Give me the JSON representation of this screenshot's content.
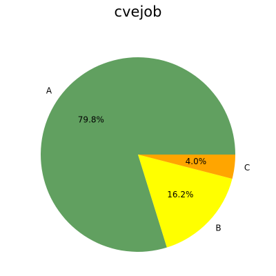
{
  "chart_data": {
    "type": "pie",
    "title": "cvejob",
    "labels": [
      "A",
      "B",
      "C"
    ],
    "values": [
      79.8,
      16.2,
      4.0
    ],
    "value_labels": [
      "79.8%",
      "16.2%",
      "4.0%"
    ],
    "colors": [
      "#61a060",
      "#ffff00",
      "#ffa500"
    ],
    "start_angle_deg": 0,
    "direction": "counterclockwise",
    "legend": "none"
  }
}
